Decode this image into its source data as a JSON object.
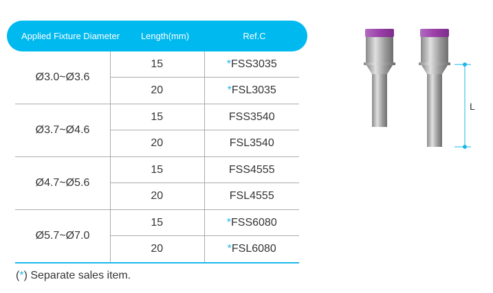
{
  "table": {
    "headers": [
      "Applied Fixture Diameter",
      "Length(mm)",
      "Ref.C"
    ],
    "groups": [
      {
        "diameter": "Ø3.0~Ø3.6",
        "rows": [
          {
            "length": "15",
            "asterisk": "*",
            "ref": "FSS3035"
          },
          {
            "length": "20",
            "asterisk": "*",
            "ref": "FSL3035"
          }
        ]
      },
      {
        "diameter": "Ø3.7~Ø4.6",
        "rows": [
          {
            "length": "15",
            "asterisk": "",
            "ref": "FSS3540"
          },
          {
            "length": "20",
            "asterisk": "",
            "ref": "FSL3540"
          }
        ]
      },
      {
        "diameter": "Ø4.7~Ø5.6",
        "rows": [
          {
            "length": "15",
            "asterisk": "",
            "ref": "FSS4555"
          },
          {
            "length": "20",
            "asterisk": "",
            "ref": "FSL4555"
          }
        ]
      },
      {
        "diameter": "Ø5.7~Ø7.0",
        "rows": [
          {
            "length": "15",
            "asterisk": "*",
            "ref": "FSS6080"
          },
          {
            "length": "20",
            "asterisk": "*",
            "ref": "FSL6080"
          }
        ]
      }
    ]
  },
  "footnote": {
    "open": "(",
    "asterisk": "*",
    "text": ") Separate sales item."
  },
  "figure": {
    "dimension_label": "L"
  },
  "colors": {
    "accent": "#00b9ef",
    "cap": "#9b3fa8"
  }
}
